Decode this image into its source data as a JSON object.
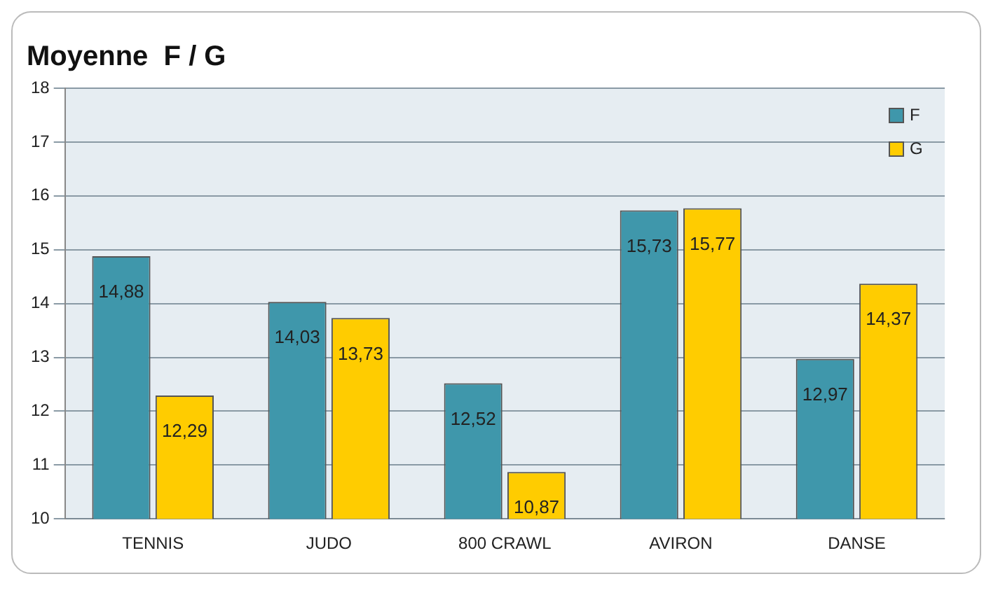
{
  "chart_data": {
    "type": "bar",
    "title": "Moyenne  F / G",
    "categories": [
      "TENNIS",
      "JUDO",
      "800 CRAWL",
      "AVIRON",
      "DANSE"
    ],
    "series": [
      {
        "name": "F",
        "color": "#3f97ab",
        "values": [
          14.88,
          14.03,
          12.52,
          15.73,
          12.97
        ],
        "value_labels": [
          "14,88",
          "14,03",
          "12,52",
          "15,73",
          "12,97"
        ]
      },
      {
        "name": "G",
        "color": "#ffcc00",
        "values": [
          12.29,
          13.73,
          10.87,
          15.77,
          14.37
        ],
        "value_labels": [
          "12,29",
          "13,73",
          "10,87",
          "15,77",
          "14,37"
        ]
      }
    ],
    "ylim": [
      10,
      18
    ],
    "yticks": [
      10,
      11,
      12,
      13,
      14,
      15,
      16,
      17,
      18
    ],
    "grid": "y",
    "legend": "top right"
  }
}
